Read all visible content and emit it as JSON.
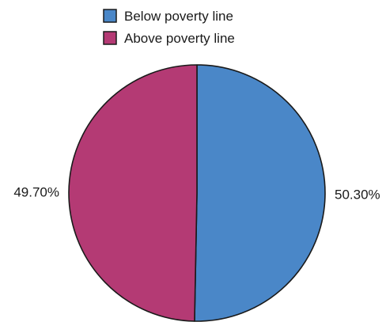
{
  "chart_data": {
    "type": "pie",
    "legend_placement": "top-center",
    "slices": [
      {
        "label": "Below poverty line",
        "value": 50.3,
        "value_label": "50.30%",
        "color": "#4a87c8"
      },
      {
        "label": "Above poverty line",
        "value": 49.7,
        "value_label": "49.70%",
        "color": "#b43a74"
      }
    ],
    "start_angle_deg": 0,
    "direction": "clockwise",
    "outline_color": "#1a1a1a"
  }
}
